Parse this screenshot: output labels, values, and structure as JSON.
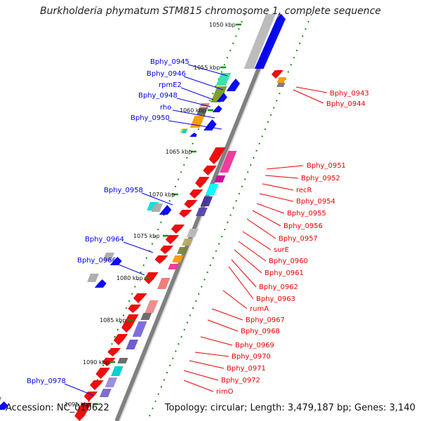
{
  "title": "Burkholderia phymatum STM815 chromosome 1, complete sequence",
  "footer": {
    "accession": "Accession: NC_010622",
    "topology": "Topology: circular; Length: 3,479,187 bp; Genes: 3,140"
  },
  "colors": {
    "forward": "#0000ee",
    "reverse": "#ee0000",
    "backbone": "#808080",
    "ticks": "#109010"
  },
  "ruler": [
    {
      "label": "1050 kbp"
    },
    {
      "label": "1055 kbp"
    },
    {
      "label": "1060 kbp"
    },
    {
      "label": "1065 kbp"
    },
    {
      "label": "1070 kbp"
    },
    {
      "label": "1075 kbp"
    },
    {
      "label": "1080 kbp"
    },
    {
      "label": "1085 kbp"
    },
    {
      "label": "1090 kbp"
    },
    {
      "label": "1095 kbp"
    }
  ],
  "left_genes": [
    {
      "label": "Bphy_0945"
    },
    {
      "label": "Bphy_0946"
    },
    {
      "label": "rpmE2"
    },
    {
      "label": "Bphy_0948"
    },
    {
      "label": "rho"
    },
    {
      "label": "Bphy_0950"
    },
    {
      "label": "Bphy_0958"
    },
    {
      "label": "Bphy_0964"
    },
    {
      "label": "Bphy_0966"
    },
    {
      "label": "Bphy_0978"
    }
  ],
  "right_genes": [
    {
      "label": "Bphy_0943"
    },
    {
      "label": "Bphy_0944"
    },
    {
      "label": "Bphy_0951"
    },
    {
      "label": "Bphy_0952"
    },
    {
      "label": "recR"
    },
    {
      "label": "Bphy_0954"
    },
    {
      "label": "Bphy_0955"
    },
    {
      "label": "Bphy_0956"
    },
    {
      "label": "Bphy_0957"
    },
    {
      "label": "surE"
    },
    {
      "label": "Bphy_0960"
    },
    {
      "label": "Bphy_0961"
    },
    {
      "label": "Bphy_0962"
    },
    {
      "label": "Bphy_0963"
    },
    {
      "label": "rumA"
    },
    {
      "label": "Bphy_0967"
    },
    {
      "label": "Bphy_0968"
    },
    {
      "label": "Bphy_0969"
    },
    {
      "label": "Bphy_0970"
    },
    {
      "label": "Bphy_0971"
    },
    {
      "label": "Bphy_0972"
    },
    {
      "label": "rimO"
    }
  ]
}
